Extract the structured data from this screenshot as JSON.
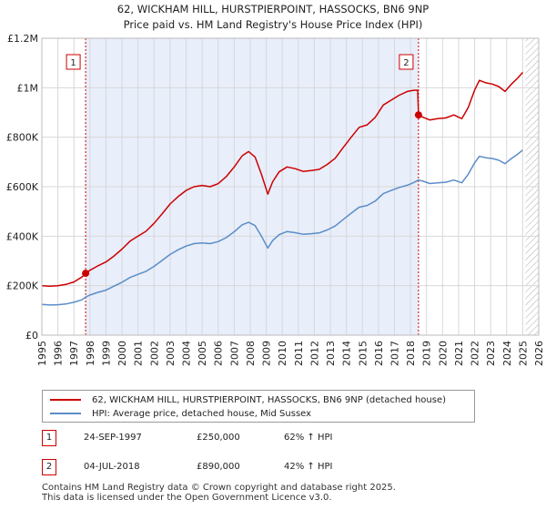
{
  "chart_data": {
    "type": "line",
    "title": "62, WICKHAM HILL, HURSTPIERPOINT, HASSOCKS, BN6 9NP",
    "subtitle": "Price paid vs. HM Land Registry's House Price Index (HPI)",
    "xlabel": "",
    "ylabel": "",
    "xlim": [
      1995,
      2026
    ],
    "ylim": [
      0,
      1200000
    ],
    "x_ticks": [
      "1995",
      "1996",
      "1997",
      "1998",
      "1999",
      "2000",
      "2001",
      "2002",
      "2003",
      "2004",
      "2005",
      "2006",
      "2007",
      "2008",
      "2009",
      "2010",
      "2011",
      "2012",
      "2013",
      "2014",
      "2015",
      "2016",
      "2017",
      "2018",
      "2019",
      "2020",
      "2021",
      "2022",
      "2023",
      "2024",
      "2025",
      "2026"
    ],
    "y_ticks": [
      {
        "value": 0,
        "label": "£0"
      },
      {
        "value": 200000,
        "label": "£200K"
      },
      {
        "value": 400000,
        "label": "£400K"
      },
      {
        "value": 600000,
        "label": "£600K"
      },
      {
        "value": 800000,
        "label": "£800K"
      },
      {
        "value": 1000000,
        "label": "£1M"
      },
      {
        "value": 1200000,
        "label": "£1.2M"
      }
    ],
    "grid": true,
    "series": [
      {
        "name": "62, WICKHAM HILL, HURSTPIERPOINT, HASSOCKS, BN6 9NP (detached house)",
        "color": "#cc0000",
        "points": [
          [
            1995.0,
            200000
          ],
          [
            1995.5,
            198000
          ],
          [
            1996.0,
            200000
          ],
          [
            1996.5,
            205000
          ],
          [
            1997.0,
            215000
          ],
          [
            1997.5,
            235000
          ],
          [
            1997.73,
            250000
          ],
          [
            1998.0,
            262000
          ],
          [
            1998.5,
            280000
          ],
          [
            1999.0,
            296000
          ],
          [
            1999.5,
            320000
          ],
          [
            2000.0,
            348000
          ],
          [
            2000.5,
            380000
          ],
          [
            2001.0,
            400000
          ],
          [
            2001.5,
            420000
          ],
          [
            2002.0,
            452000
          ],
          [
            2002.5,
            490000
          ],
          [
            2003.0,
            530000
          ],
          [
            2003.5,
            560000
          ],
          [
            2004.0,
            585000
          ],
          [
            2004.5,
            600000
          ],
          [
            2005.0,
            605000
          ],
          [
            2005.5,
            600000
          ],
          [
            2006.0,
            612000
          ],
          [
            2006.5,
            640000
          ],
          [
            2007.0,
            680000
          ],
          [
            2007.5,
            725000
          ],
          [
            2007.9,
            742000
          ],
          [
            2008.3,
            720000
          ],
          [
            2008.7,
            650000
          ],
          [
            2009.1,
            570000
          ],
          [
            2009.4,
            620000
          ],
          [
            2009.8,
            660000
          ],
          [
            2010.3,
            680000
          ],
          [
            2010.8,
            673000
          ],
          [
            2011.3,
            662000
          ],
          [
            2011.8,
            665000
          ],
          [
            2012.3,
            670000
          ],
          [
            2012.8,
            690000
          ],
          [
            2013.3,
            715000
          ],
          [
            2013.8,
            758000
          ],
          [
            2014.3,
            800000
          ],
          [
            2014.8,
            840000
          ],
          [
            2015.3,
            850000
          ],
          [
            2015.8,
            880000
          ],
          [
            2016.3,
            930000
          ],
          [
            2016.8,
            950000
          ],
          [
            2017.3,
            970000
          ],
          [
            2017.8,
            985000
          ],
          [
            2018.2,
            990000
          ],
          [
            2018.45,
            990000
          ],
          [
            2018.5,
            890000
          ],
          [
            2018.8,
            880000
          ],
          [
            2019.2,
            870000
          ],
          [
            2019.7,
            875000
          ],
          [
            2020.2,
            878000
          ],
          [
            2020.7,
            890000
          ],
          [
            2021.2,
            875000
          ],
          [
            2021.6,
            920000
          ],
          [
            2022.0,
            990000
          ],
          [
            2022.3,
            1030000
          ],
          [
            2022.7,
            1020000
          ],
          [
            2023.1,
            1015000
          ],
          [
            2023.5,
            1005000
          ],
          [
            2023.9,
            985000
          ],
          [
            2024.3,
            1015000
          ],
          [
            2024.7,
            1040000
          ],
          [
            2025.0,
            1062000
          ]
        ]
      },
      {
        "name": "HPI: Average price, detached house, Mid Sussex",
        "color": "#5b8dc8",
        "points": [
          [
            1995.0,
            124000
          ],
          [
            1995.5,
            122000
          ],
          [
            1996.0,
            123000
          ],
          [
            1996.5,
            126000
          ],
          [
            1997.0,
            133000
          ],
          [
            1997.5,
            143000
          ],
          [
            1997.73,
            154000
          ],
          [
            1998.0,
            162000
          ],
          [
            1998.5,
            173000
          ],
          [
            1999.0,
            182000
          ],
          [
            1999.5,
            198000
          ],
          [
            2000.0,
            214000
          ],
          [
            2000.5,
            233000
          ],
          [
            2001.0,
            246000
          ],
          [
            2001.5,
            258000
          ],
          [
            2002.0,
            278000
          ],
          [
            2002.5,
            302000
          ],
          [
            2003.0,
            326000
          ],
          [
            2003.5,
            345000
          ],
          [
            2004.0,
            360000
          ],
          [
            2004.5,
            370000
          ],
          [
            2005.0,
            373000
          ],
          [
            2005.5,
            370000
          ],
          [
            2006.0,
            378000
          ],
          [
            2006.5,
            394000
          ],
          [
            2007.0,
            418000
          ],
          [
            2007.5,
            446000
          ],
          [
            2007.9,
            456000
          ],
          [
            2008.3,
            443000
          ],
          [
            2008.7,
            400000
          ],
          [
            2009.1,
            352000
          ],
          [
            2009.4,
            382000
          ],
          [
            2009.8,
            406000
          ],
          [
            2010.3,
            419000
          ],
          [
            2010.8,
            414000
          ],
          [
            2011.3,
            408000
          ],
          [
            2011.8,
            410000
          ],
          [
            2012.3,
            413000
          ],
          [
            2012.8,
            425000
          ],
          [
            2013.3,
            441000
          ],
          [
            2013.8,
            467000
          ],
          [
            2014.3,
            493000
          ],
          [
            2014.8,
            517000
          ],
          [
            2015.3,
            524000
          ],
          [
            2015.8,
            542000
          ],
          [
            2016.3,
            572000
          ],
          [
            2016.8,
            585000
          ],
          [
            2017.3,
            597000
          ],
          [
            2017.8,
            606000
          ],
          [
            2018.2,
            617000
          ],
          [
            2018.5,
            627000
          ],
          [
            2018.8,
            622000
          ],
          [
            2019.2,
            613000
          ],
          [
            2019.7,
            616000
          ],
          [
            2020.2,
            618000
          ],
          [
            2020.7,
            627000
          ],
          [
            2021.2,
            616000
          ],
          [
            2021.6,
            650000
          ],
          [
            2022.0,
            696000
          ],
          [
            2022.3,
            723000
          ],
          [
            2022.7,
            717000
          ],
          [
            2023.1,
            714000
          ],
          [
            2023.5,
            707000
          ],
          [
            2023.9,
            693000
          ],
          [
            2024.3,
            714000
          ],
          [
            2024.7,
            732000
          ],
          [
            2025.0,
            748000
          ]
        ]
      }
    ],
    "sales": [
      {
        "id": "1",
        "x": 1997.73,
        "value": 250000,
        "date": "24-SEP-1997",
        "price": "£250,000",
        "hpi": "62% ↑ HPI"
      },
      {
        "id": "2",
        "x": 2018.5,
        "value": 890000,
        "date": "04-JUL-2018",
        "price": "£890,000",
        "hpi": "42% ↑ HPI"
      }
    ],
    "shade_from": 1997.73,
    "shade_to": 2018.5,
    "hatch_from": 2025.17
  },
  "legend": {
    "red_label": "62, WICKHAM HILL, HURSTPIERPOINT, HASSOCKS, BN6 9NP (detached house)",
    "blue_label": "HPI: Average price, detached house, Mid Sussex"
  },
  "footer": {
    "line1": "Contains HM Land Registry data © Crown copyright and database right 2025.",
    "line2": "This data is licensed under the Open Government Licence v3.0."
  },
  "colors": {
    "red": "#cc0000",
    "blue": "#5b8dc8",
    "shade": "#e8eefa",
    "grid": "#d8d8d8"
  }
}
